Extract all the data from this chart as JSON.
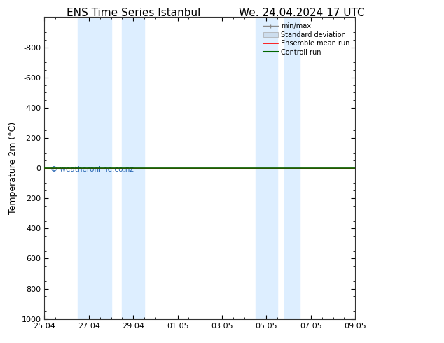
{
  "title_left": "ENS Time Series Istanbul",
  "title_right": "We. 24.04.2024 17 UTC",
  "ylabel": "Temperature 2m (°C)",
  "watermark": "© weatheronline.co.nz",
  "xlim": [
    0,
    14
  ],
  "ylim": [
    1000,
    -1000
  ],
  "yticks": [
    -800,
    -600,
    -400,
    -200,
    0,
    200,
    400,
    600,
    800,
    1000
  ],
  "xtick_labels": [
    "25.04",
    "27.04",
    "29.04",
    "01.05",
    "03.05",
    "05.05",
    "07.05",
    "09.05"
  ],
  "xtick_positions": [
    0,
    2,
    4,
    6,
    8,
    10,
    12,
    14
  ],
  "shaded_regions": [
    [
      1.5,
      3.0
    ],
    [
      3.5,
      4.5
    ],
    [
      9.5,
      10.5
    ],
    [
      10.8,
      11.5
    ]
  ],
  "shade_color": "#ddeeff",
  "line_y": 0,
  "line_color_green": "#006600",
  "line_color_red": "#ff0000",
  "line_color_gray": "#888888",
  "background_color": "#ffffff",
  "legend_labels": [
    "min/max",
    "Standard deviation",
    "Ensemble mean run",
    "Controll run"
  ],
  "legend_colors": [
    "#888888",
    "#cccccc",
    "#ff0000",
    "#006600"
  ],
  "title_fontsize": 11,
  "axis_fontsize": 8,
  "ylabel_fontsize": 9
}
